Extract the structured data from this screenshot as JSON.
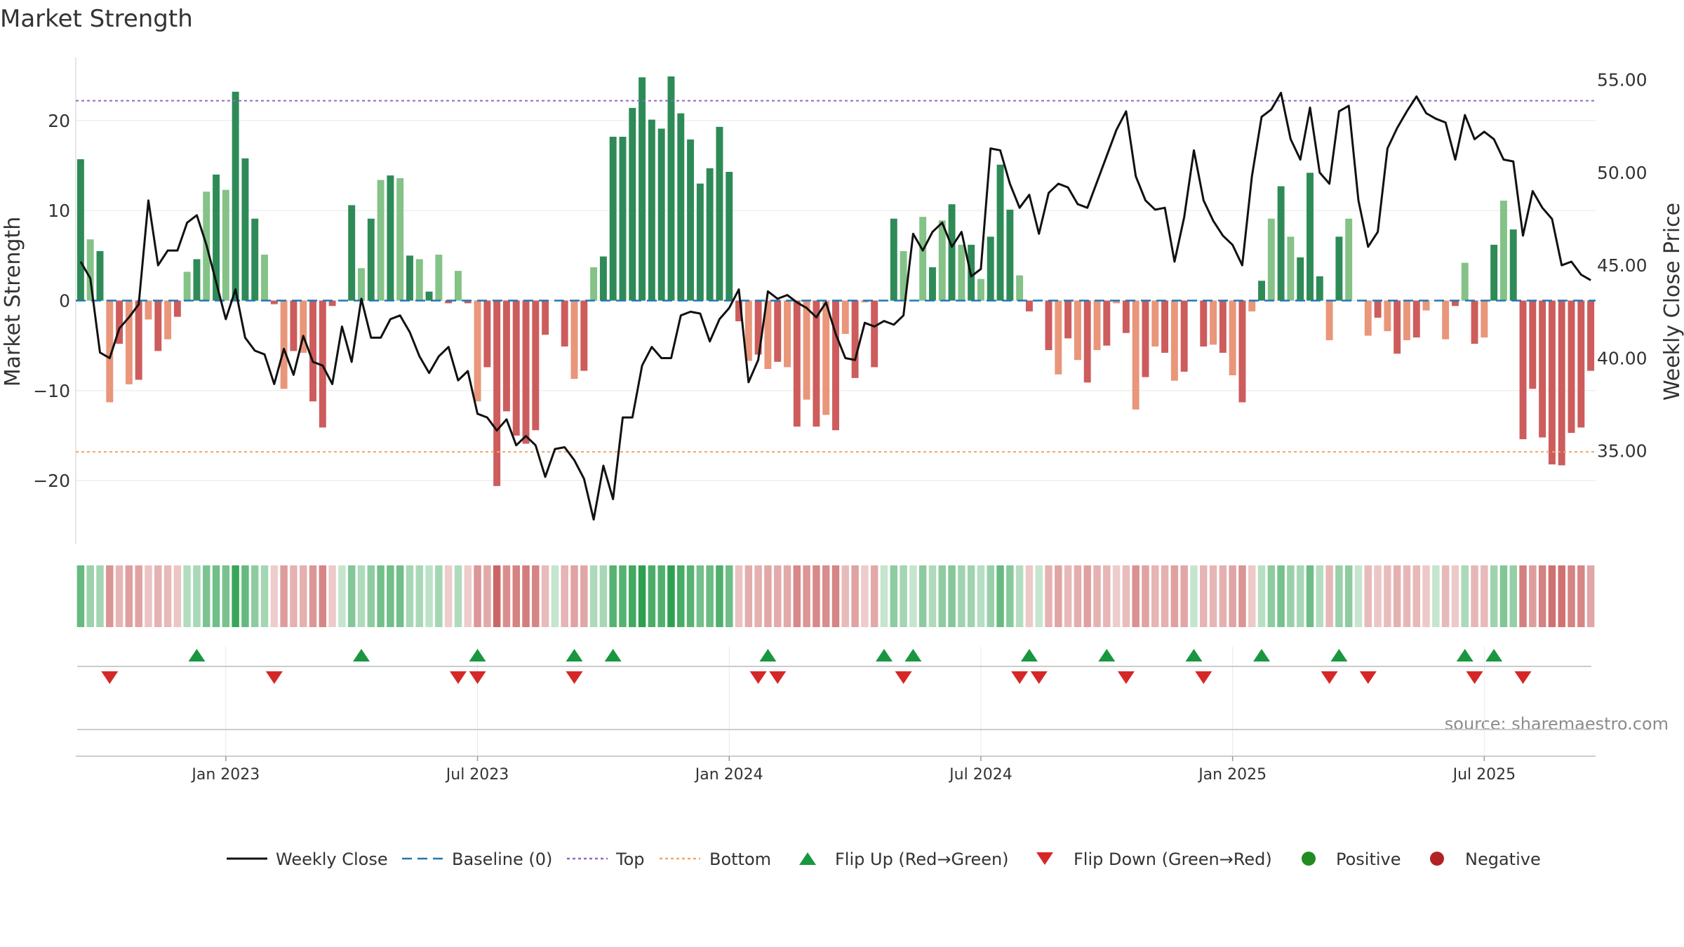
{
  "chart_data": {
    "type": "bar",
    "title": "Market Strength",
    "ylabel_left": "Market Strength",
    "ylabel_right": "Weekly Close Price",
    "source": "source: sharemaestro.com",
    "ylim_left": [
      -27,
      27
    ],
    "ylim_right": [
      30,
      56.2
    ],
    "yticks_left": [
      -20,
      -10,
      0,
      10,
      20
    ],
    "ytick_left_labels": [
      "−20",
      "−10",
      "0",
      "10",
      "20"
    ],
    "yticks_right": [
      35,
      40,
      45,
      50,
      55
    ],
    "ytick_right_labels": [
      "35.00",
      "40.00",
      "45.00",
      "50.00",
      "55.00"
    ],
    "xticks": [
      {
        "label": "Jan 2023",
        "week": 15
      },
      {
        "label": "Jul 2023",
        "week": 41
      },
      {
        "label": "Jan 2024",
        "week": 67
      },
      {
        "label": "Jul 2024",
        "week": 93
      },
      {
        "label": "Jan 2025",
        "week": 119
      },
      {
        "label": "Jul 2025",
        "week": 145
      }
    ],
    "top_level": 22.2,
    "bottom_level": -16.8,
    "baseline": 0,
    "strength": [
      15.7,
      6.8,
      5.5,
      -11.3,
      -4.8,
      -9.3,
      -8.8,
      -2.1,
      -5.6,
      -4.3,
      -1.8,
      3.2,
      4.6,
      12.1,
      14.0,
      12.3,
      23.2,
      15.8,
      9.1,
      5.1,
      -0.4,
      -9.8,
      -5.6,
      -5.8,
      -11.2,
      -14.1,
      -0.6,
      0,
      10.6,
      3.6,
      9.1,
      13.4,
      13.9,
      13.6,
      5.0,
      4.6,
      1.0,
      5.1,
      -0.3,
      3.3,
      -0.3,
      -11.2,
      -7.4,
      -20.6,
      -12.3,
      -15.0,
      -15.9,
      -14.4,
      -3.8,
      0,
      -5.1,
      -8.7,
      -7.8,
      3.7,
      4.9,
      18.2,
      18.2,
      21.4,
      24.8,
      20.1,
      19.1,
      24.9,
      20.8,
      17.9,
      13.0,
      14.7,
      19.3,
      14.3,
      -2.3,
      -6.7,
      -6.0,
      -7.6,
      -6.8,
      -7.4,
      -14.0,
      -11.0,
      -14.0,
      -12.7,
      -14.4,
      -3.7,
      -8.6,
      -0.2,
      -7.4,
      0,
      9.1,
      5.5,
      0,
      9.3,
      3.7,
      8.9,
      10.7,
      6.2,
      6.2,
      2.4,
      7.1,
      15.1,
      10.1,
      2.8,
      -1.2,
      0,
      -5.5,
      -8.2,
      -4.2,
      -6.6,
      -9.1,
      -5.5,
      -5.0,
      -0.3,
      -3.6,
      -12.1,
      -8.5,
      -5.1,
      -5.8,
      -8.9,
      -7.9,
      0,
      -5.1,
      -4.9,
      -5.8,
      -8.3,
      -11.3,
      -1.2,
      2.2,
      9.1,
      12.7,
      7.1,
      4.8,
      14.2,
      2.7,
      -4.4,
      7.1,
      9.1,
      0,
      -3.9,
      -1.9,
      -3.4,
      -5.9,
      -4.4,
      -4.1,
      -1.1,
      0,
      -4.3,
      -0.6,
      4.2,
      -4.8,
      -4.1,
      6.2,
      11.1,
      7.9,
      -15.4,
      -9.8,
      -15.2,
      -18.2,
      -18.3,
      -14.7,
      -14.1,
      -7.8
    ],
    "weekly_close": [
      45.2,
      44.3,
      40.3,
      40.0,
      41.6,
      42.2,
      42.9,
      48.5,
      45.0,
      45.8,
      45.8,
      47.3,
      47.7,
      46.1,
      44.1,
      42.1,
      43.7,
      41.1,
      40.4,
      40.2,
      38.6,
      40.5,
      39.1,
      41.2,
      39.8,
      39.6,
      38.6,
      41.7,
      39.8,
      43.2,
      41.1,
      41.1,
      42.1,
      42.3,
      41.4,
      40.1,
      39.2,
      40.1,
      40.6,
      38.8,
      39.3,
      37.0,
      36.8,
      36.1,
      36.7,
      35.3,
      35.8,
      35.3,
      33.6,
      35.1,
      35.2,
      34.5,
      33.5,
      31.3,
      34.2,
      32.4,
      36.8,
      36.8,
      39.6,
      40.6,
      40.0,
      40.0,
      42.3,
      42.5,
      42.4,
      40.9,
      42.1,
      42.7,
      43.7,
      38.7,
      39.9,
      43.6,
      43.2,
      43.4,
      43.0,
      42.7,
      42.2,
      43.0,
      41.3,
      40.0,
      39.9,
      41.9,
      41.7,
      42.0,
      41.8,
      42.3,
      46.7,
      45.8,
      46.8,
      47.3,
      46.0,
      46.8,
      44.4,
      44.8,
      51.3,
      51.2,
      49.4,
      48.1,
      48.8,
      46.7,
      48.9,
      49.4,
      49.2,
      48.3,
      48.1,
      49.5,
      50.9,
      52.3,
      53.3,
      49.8,
      48.5,
      48.0,
      48.1,
      45.2,
      47.6,
      51.2,
      48.5,
      47.4,
      46.6,
      46.1,
      45.0,
      49.8,
      53.0,
      53.4,
      54.3,
      51.8,
      50.7,
      53.5,
      50.0,
      49.4,
      53.3,
      53.6,
      48.5,
      46.0,
      46.8,
      51.3,
      52.4,
      53.3,
      54.1,
      53.2,
      52.9,
      52.7,
      50.7,
      53.1,
      51.8,
      52.2,
      51.8,
      50.7,
      50.6,
      46.6,
      49.0,
      48.1,
      47.5,
      45.0,
      45.2,
      44.5,
      44.2
    ],
    "flip_up_weeks": [
      12,
      29,
      41,
      51,
      55,
      71,
      83,
      86,
      98,
      106,
      115,
      122,
      130,
      143,
      146
    ],
    "flip_down_weeks": [
      3,
      20,
      39,
      41,
      51,
      70,
      72,
      85,
      97,
      99,
      108,
      116,
      129,
      133,
      144,
      149
    ],
    "colors": {
      "strong_green": "#2e8b57",
      "light_green": "#84c287",
      "strong_red": "#cd5c5c",
      "light_red": "#e9967a",
      "line": "#111111",
      "baseline": "#1f77b4",
      "top": "#9467bd",
      "bottom": "#f4a460",
      "flip_up": "#1a9641",
      "flip_down": "#d62728",
      "positive_dot": "#228b22",
      "negative_dot": "#b22222",
      "grid": "#e8e8e8",
      "axis": "#cccccc"
    },
    "legend": [
      {
        "label": "Weekly Close",
        "kind": "line"
      },
      {
        "label": "Baseline (0)",
        "kind": "baseline"
      },
      {
        "label": "Top",
        "kind": "top"
      },
      {
        "label": "Bottom",
        "kind": "bottom"
      },
      {
        "label": "Flip Up (Red→Green)",
        "kind": "flip_up"
      },
      {
        "label": "Flip Down (Green→Red)",
        "kind": "flip_down"
      },
      {
        "label": "Positive",
        "kind": "positive"
      },
      {
        "label": "Negative",
        "kind": "negative"
      }
    ],
    "legend_position": "bottom-center"
  }
}
